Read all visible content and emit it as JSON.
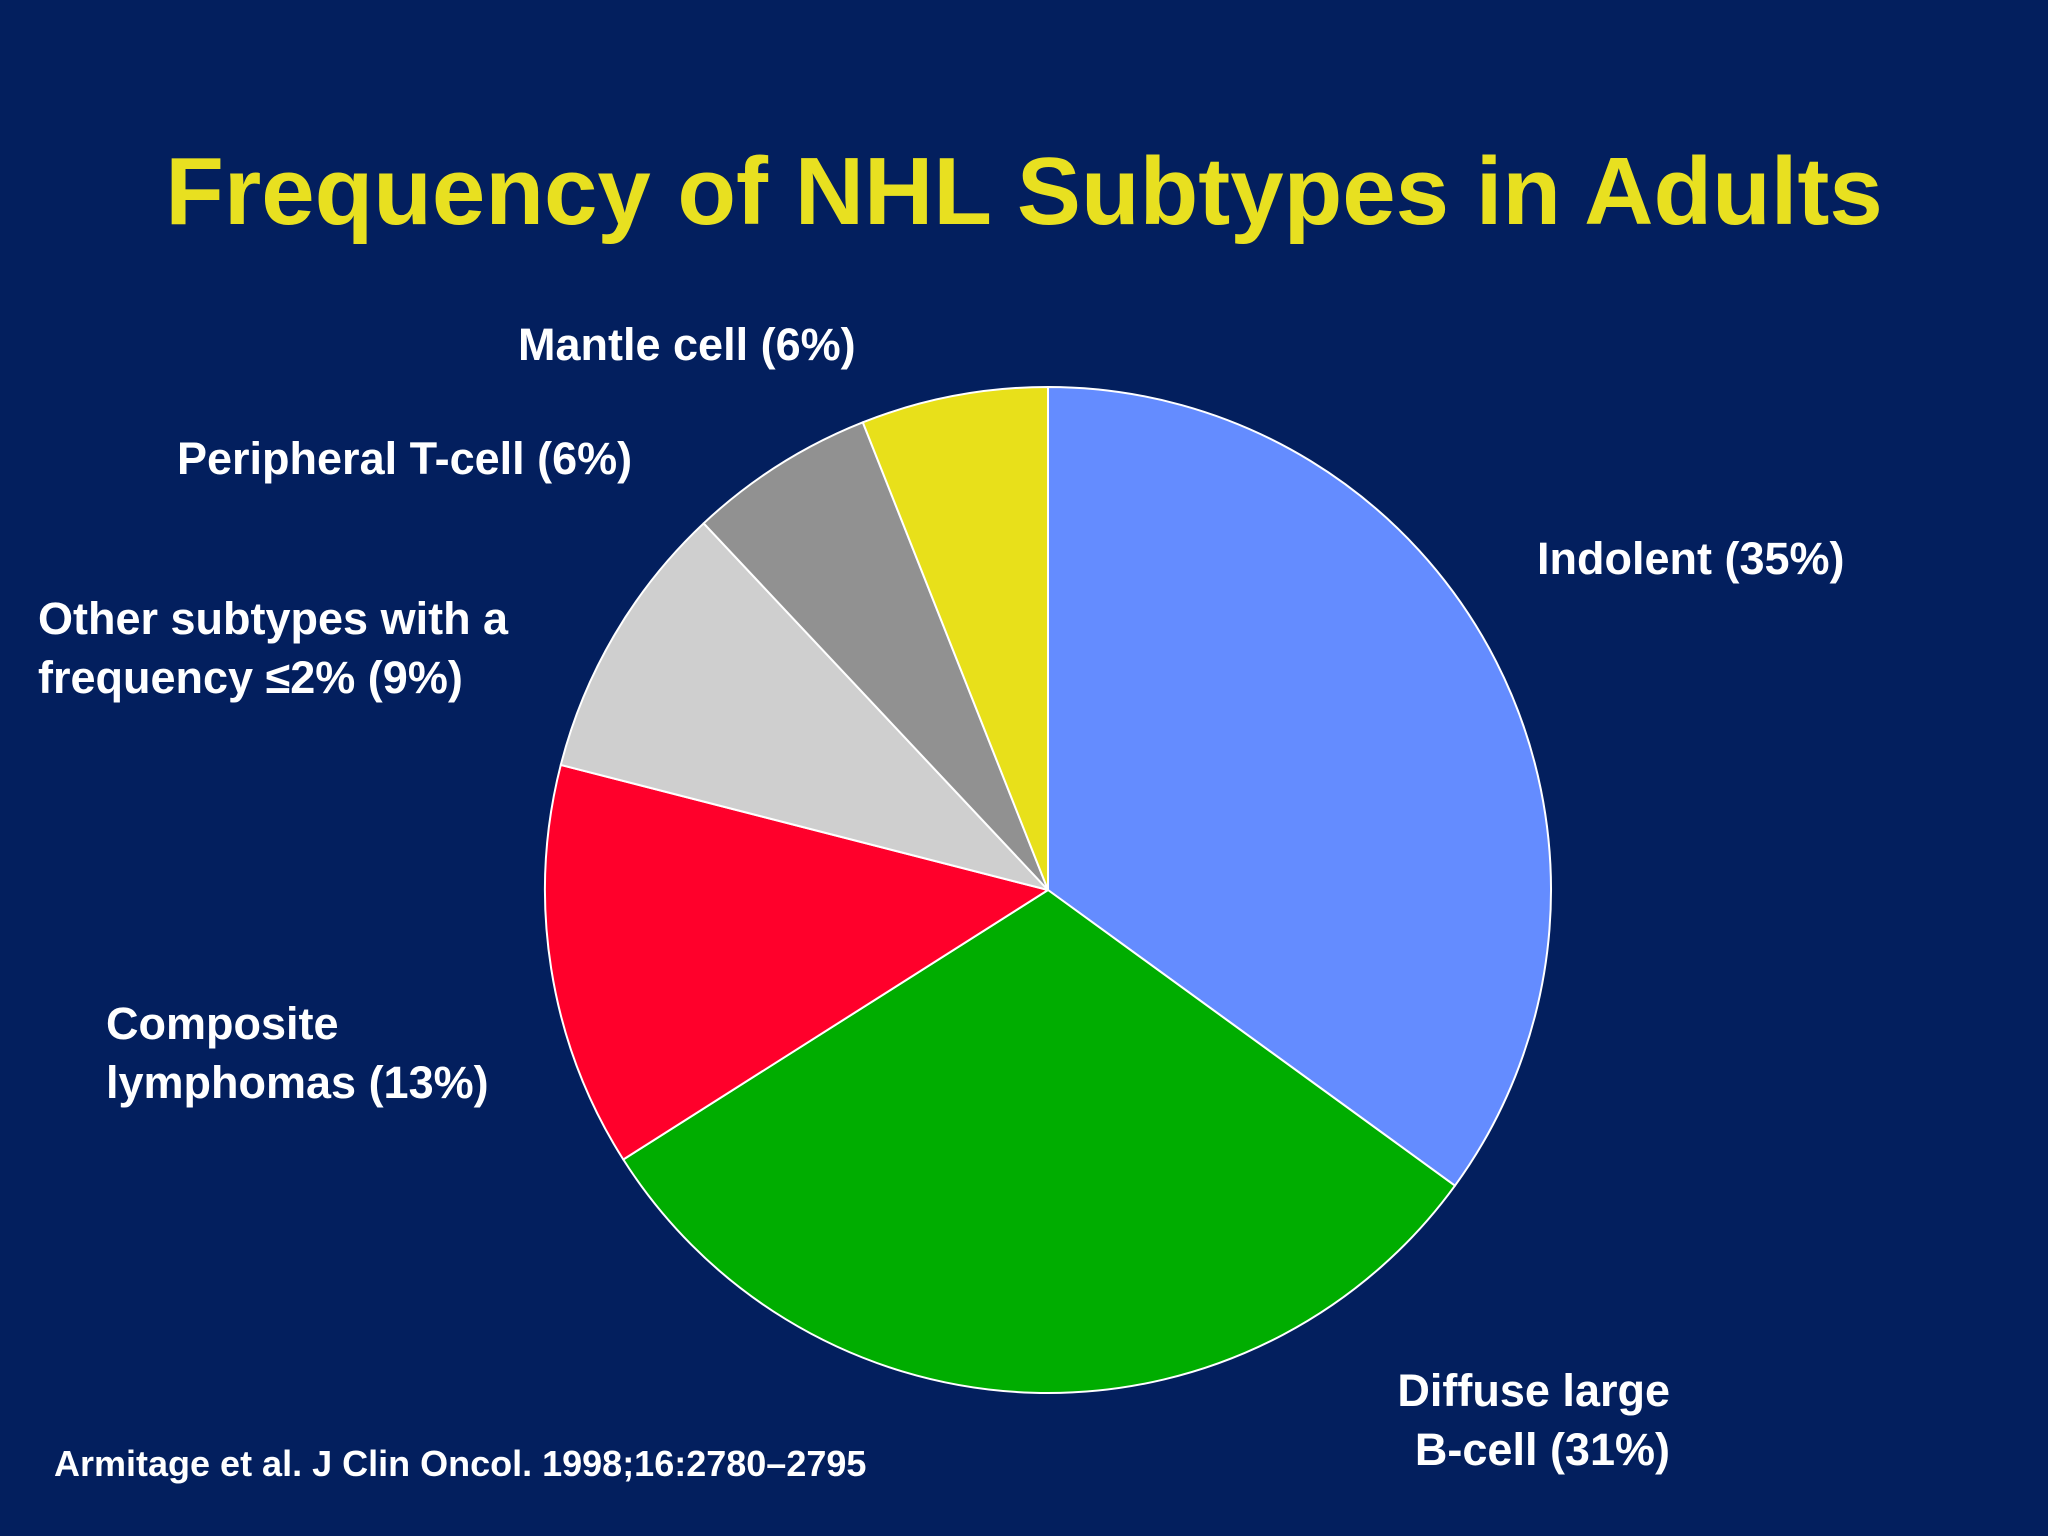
{
  "title": "Frequency of NHL Subtypes in Adults",
  "citation": "Armitage et al. J Clin Oncol. 1998;16:2780–2795",
  "chart_data": {
    "type": "pie",
    "title": "Frequency of NHL Subtypes in Adults",
    "unit": "%",
    "start": "12 o'clock",
    "direction": "clockwise",
    "slices": [
      {
        "key": "indolent",
        "lines": [
          "Indolent (35%)"
        ],
        "value": 35,
        "color": "#648cff"
      },
      {
        "key": "dlbcl",
        "lines": [
          "Diffuse large",
          "B-cell (31%)"
        ],
        "value": 31,
        "color": "#00ad00"
      },
      {
        "key": "composite",
        "lines": [
          "Composite",
          "lymphomas (13%)"
        ],
        "value": 13,
        "color": "#ff002b"
      },
      {
        "key": "other",
        "lines": [
          "Other subtypes with a",
          "frequency ≤2% (9%)"
        ],
        "value": 9,
        "color": "#cfcfcf"
      },
      {
        "key": "ptcl",
        "lines": [
          "Peripheral T-cell (6%)"
        ],
        "value": 6,
        "color": "#919191"
      },
      {
        "key": "mantle",
        "lines": [
          "Mantle cell (6%)"
        ],
        "value": 6,
        "color": "#e8e01a"
      }
    ]
  }
}
